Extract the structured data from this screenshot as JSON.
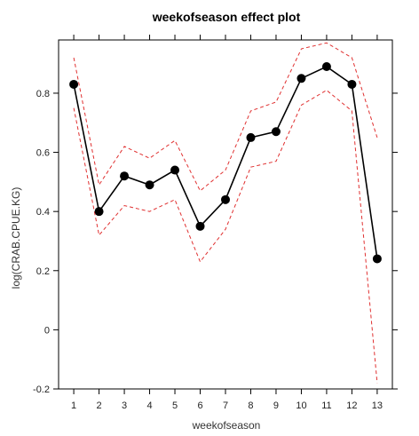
{
  "chart_data": {
    "type": "line",
    "title": "weekofseason effect plot",
    "xlabel": "weekofseason",
    "ylabel": "log(CRAB.CPUE.KG)",
    "x": [
      1,
      2,
      3,
      4,
      5,
      6,
      7,
      8,
      9,
      10,
      11,
      12,
      13
    ],
    "xlim": [
      0.4,
      13.6
    ],
    "ylim": [
      -0.2,
      0.98
    ],
    "xticks": [
      "1",
      "2",
      "3",
      "4",
      "5",
      "6",
      "7",
      "8",
      "9",
      "10",
      "11",
      "12",
      "13"
    ],
    "yticks": [
      -0.2,
      0,
      0.2,
      0.4,
      0.6,
      0.8
    ],
    "ytick_labels": [
      "-0.2",
      "0",
      "0.2",
      "0.4",
      "0.6",
      "0.8"
    ],
    "grid": false,
    "legend": "none",
    "series": [
      {
        "role": "estimate",
        "values": [
          0.83,
          0.4,
          0.52,
          0.49,
          0.54,
          0.35,
          0.44,
          0.65,
          0.67,
          0.85,
          0.89,
          0.83,
          0.24
        ],
        "color": "#000000",
        "style": "solid",
        "marker": "circle"
      },
      {
        "role": "upper",
        "values": [
          0.92,
          0.49,
          0.62,
          0.58,
          0.64,
          0.47,
          0.54,
          0.74,
          0.77,
          0.95,
          0.97,
          0.92,
          0.65
        ],
        "color": "#e03030",
        "style": "dashed"
      },
      {
        "role": "lower",
        "values": [
          0.75,
          0.32,
          0.42,
          0.4,
          0.44,
          0.23,
          0.34,
          0.55,
          0.57,
          0.76,
          0.81,
          0.74,
          -0.18
        ],
        "color": "#e03030",
        "style": "dashed"
      }
    ]
  }
}
